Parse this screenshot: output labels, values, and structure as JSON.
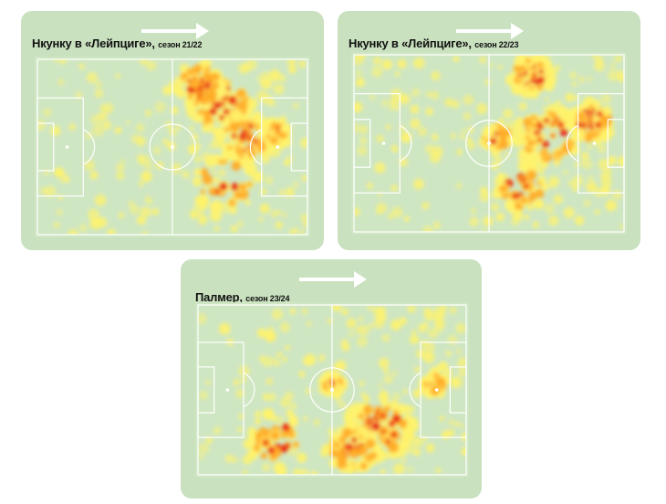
{
  "colors": {
    "card_bg": "#c9e1bf",
    "pitch_bg": "#cfe6c3",
    "pitch_lines": "#ffffff",
    "heat_low": "#fff36b",
    "heat_mid": "#ffa51e",
    "heat_high": "#e8231a"
  },
  "heatmaps": [
    {
      "player": "Нкунку в «Лейпциге»,",
      "season": "сезон 21/22",
      "direction": "left-to-right",
      "hotspots": "right half, top and around the right penalty box"
    },
    {
      "player": "Нкунку в «Лейпциге»,",
      "season": "сезон 22/23",
      "direction": "left-to-right",
      "hotspots": "right half, top and right of center circle"
    },
    {
      "player": "Палмер,",
      "season": "сезон 23/24",
      "direction": "left-to-right",
      "hotspots": "right half, bottom area"
    }
  ]
}
